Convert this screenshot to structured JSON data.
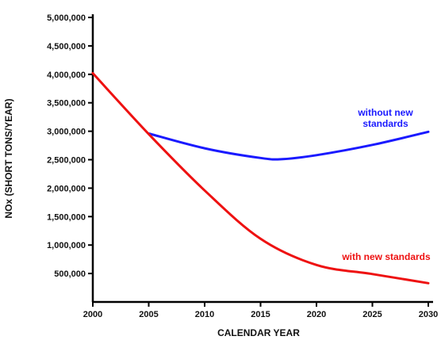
{
  "chart_data": {
    "type": "line",
    "title": "",
    "xlabel": "CALENDAR YEAR",
    "ylabel": "NOx  (SHORT TONS/YEAR)",
    "xlim": [
      2000,
      2030
    ],
    "ylim": [
      0,
      5000000
    ],
    "x_ticks": [
      2000,
      2005,
      2010,
      2015,
      2020,
      2025,
      2030
    ],
    "x_tick_labels": [
      "2000",
      "2005",
      "2010",
      "2015",
      "2020",
      "2025",
      "2030"
    ],
    "y_ticks": [
      500000,
      1000000,
      1500000,
      2000000,
      2500000,
      3000000,
      3500000,
      4000000,
      4500000,
      5000000
    ],
    "y_tick_labels": [
      "500,000",
      "1,000,000",
      "1,500,000",
      "2,000,000",
      "2,500,000",
      "3,000,000",
      "3,500,000",
      "4,000,000",
      "4,500,000",
      "5,000,000"
    ],
    "grid": false,
    "series": [
      {
        "name": "without new standards",
        "label_lines": [
          "without new",
          "standards"
        ],
        "color": "#1a1aff",
        "x": [
          2005,
          2010,
          2015,
          2017,
          2020,
          2025,
          2030
        ],
        "values": [
          2960000,
          2700000,
          2530000,
          2510000,
          2580000,
          2760000,
          2990000
        ]
      },
      {
        "name": "with new standards",
        "label_lines": [
          "with new standards"
        ],
        "color": "#ee1111",
        "x": [
          2000,
          2005,
          2010,
          2015,
          2020,
          2025,
          2030
        ],
        "values": [
          4020000,
          2950000,
          1960000,
          1110000,
          650000,
          490000,
          330000
        ]
      }
    ]
  }
}
